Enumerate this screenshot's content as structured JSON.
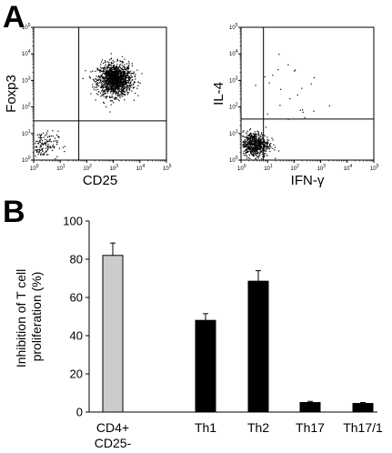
{
  "panel_labels": {
    "a": "A",
    "b": "B"
  },
  "chart_data": [
    {
      "type": "scatter",
      "panel": "A",
      "xlabel": "CD25",
      "ylabel": "Foxp3",
      "scale": "log",
      "xlim": [
        1,
        100000
      ],
      "ylim": [
        1,
        100000
      ],
      "x_ticks": [
        "10^0",
        "10^1",
        "10^2",
        "10^3",
        "10^4",
        "10^5"
      ],
      "y_ticks": [
        "10^0",
        "10^1",
        "10^2",
        "10^3",
        "10^4",
        "10^5"
      ],
      "gate": {
        "x": 50,
        "y": 30
      },
      "clusters": [
        {
          "center": [
            1100,
            1100
          ],
          "spread_log10": [
            0.32,
            0.3
          ],
          "count": 1400
        },
        {
          "center": [
            2,
            4
          ],
          "spread_log10": [
            0.3,
            0.25
          ],
          "count": 160
        }
      ],
      "grid": false
    },
    {
      "type": "scatter",
      "panel": "A",
      "xlabel": "IFN-γ",
      "ylabel": "IL-4",
      "scale": "log",
      "xlim": [
        1,
        100000
      ],
      "ylim": [
        1,
        100000
      ],
      "x_ticks": [
        "10^0",
        "10^1",
        "10^2",
        "10^3",
        "10^4",
        "10^5"
      ],
      "y_ticks": [
        "10^0",
        "10^1",
        "10^2",
        "10^3",
        "10^4",
        "10^5"
      ],
      "gate": {
        "x": 7,
        "y": 35
      },
      "clusters": [
        {
          "center": [
            3,
            4
          ],
          "spread_log10": [
            0.28,
            0.24
          ],
          "count": 650
        },
        {
          "center": [
            60,
            400
          ],
          "spread_log10": [
            0.9,
            0.9
          ],
          "count": 25
        }
      ],
      "grid": false
    },
    {
      "type": "bar",
      "panel": "B",
      "ylabel": "Inhibition of T cell proliferation (%)",
      "ylabel_lines": [
        "Inhibition of T cell",
        "proliferation (%)"
      ],
      "ylim": [
        0,
        100
      ],
      "yticks": [
        "0",
        "20",
        "40",
        "60",
        "80",
        "100"
      ],
      "categories": [
        {
          "label_lines": [
            "CD4+",
            "CD25-"
          ]
        },
        {
          "label_lines": [
            "Th1"
          ]
        },
        {
          "label_lines": [
            "Th2"
          ]
        },
        {
          "label_lines": [
            "Th17"
          ]
        },
        {
          "label_lines": [
            "Th17/1"
          ]
        }
      ],
      "values": [
        82,
        48,
        68.5,
        5,
        4.5
      ],
      "errors": [
        6.5,
        3.5,
        5.5,
        0.6,
        0.5
      ],
      "colors": [
        "#cccccc",
        "#000000",
        "#000000",
        "#000000",
        "#000000"
      ],
      "grid": false
    }
  ]
}
